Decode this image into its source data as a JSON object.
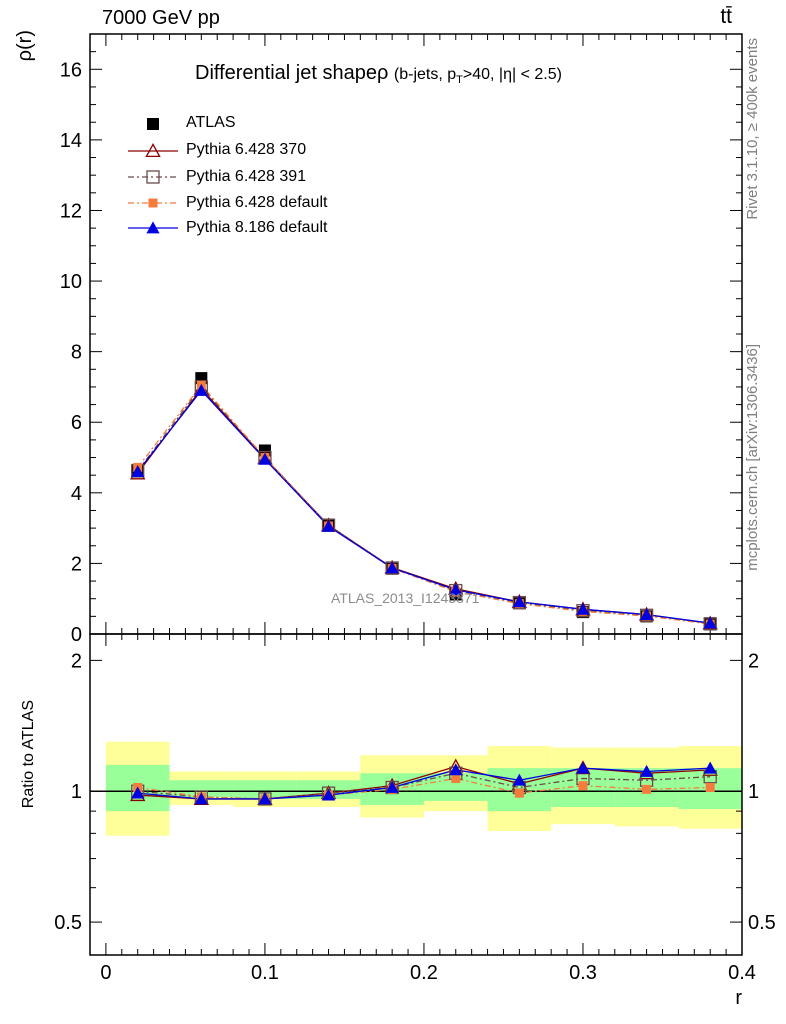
{
  "header": {
    "left": "7000 GeV pp",
    "right": "tt̄"
  },
  "side_labels": {
    "rivet": "Rivet 3.1.10, ≥ 400k events",
    "mcplots": "mcplots.cern.ch [arXiv:1306.3436]"
  },
  "watermark": "ATLAS_2013_I1243871",
  "colors": {
    "atlas": "#000000",
    "py370": "#8b0000",
    "py391": "#6b4a4a",
    "py6def": "#f47c3c",
    "py8def": "#0000e0",
    "band_yellow": "#ffff99",
    "band_green": "#99ff99"
  },
  "chart_data": [
    {
      "type": "line",
      "title": "Differential jet shapeρ",
      "subtitle": "(b-jets, p_T>40, |η| < 2.5)",
      "ylabel": "ρ(r)",
      "ylim": [
        0,
        17
      ],
      "yticks": [
        0,
        2,
        4,
        6,
        8,
        10,
        12,
        14,
        16
      ],
      "x": [
        0.02,
        0.06,
        0.1,
        0.14,
        0.18,
        0.22,
        0.26,
        0.3,
        0.34,
        0.38
      ],
      "legend_position": "top-left",
      "series": [
        {
          "name": "ATLAS",
          "key": "atlas",
          "marker": "square-filled",
          "values": [
            4.65,
            7.25,
            5.2,
            3.1,
            1.85,
            1.12,
            0.87,
            0.62,
            0.5,
            0.27
          ]
        },
        {
          "name": "Pythia 6.428 370",
          "key": "py370",
          "marker": "triangle-open",
          "values": [
            4.55,
            6.95,
            4.98,
            3.08,
            1.88,
            1.28,
            0.91,
            0.7,
            0.55,
            0.3
          ]
        },
        {
          "name": "Pythia 6.428 391",
          "key": "py391",
          "marker": "square-open",
          "values": [
            4.62,
            7.0,
            5.0,
            3.08,
            1.87,
            1.23,
            0.89,
            0.66,
            0.53,
            0.29
          ]
        },
        {
          "name": "Pythia 6.428 default",
          "key": "py6def",
          "marker": "square-filled-small",
          "values": [
            4.72,
            7.05,
            5.0,
            3.06,
            1.86,
            1.2,
            0.86,
            0.64,
            0.51,
            0.28
          ]
        },
        {
          "name": "Pythia 8.186 default",
          "key": "py8def",
          "marker": "triangle-filled",
          "values": [
            4.6,
            6.9,
            4.95,
            3.05,
            1.87,
            1.25,
            0.91,
            0.7,
            0.55,
            0.31
          ]
        }
      ]
    },
    {
      "type": "line",
      "ylabel": "Ratio to ATLAS",
      "xlabel": "r",
      "scale": "log",
      "ylim": [
        0.42,
        2.3
      ],
      "yticks": [
        0.5,
        1,
        2
      ],
      "xlim": [
        -0.01,
        0.4
      ],
      "xticks": [
        0,
        0.1,
        0.2,
        0.3,
        0.4
      ],
      "x": [
        0.02,
        0.06,
        0.1,
        0.14,
        0.18,
        0.22,
        0.26,
        0.3,
        0.34,
        0.38
      ],
      "bands": {
        "edges": [
          0,
          0.04,
          0.08,
          0.12,
          0.16,
          0.2,
          0.24,
          0.28,
          0.32,
          0.36,
          0.4
        ],
        "yellow_lo": [
          0.79,
          0.93,
          0.92,
          0.92,
          0.87,
          0.9,
          0.81,
          0.84,
          0.83,
          0.82
        ],
        "yellow_hi": [
          1.3,
          1.11,
          1.11,
          1.11,
          1.21,
          1.21,
          1.27,
          1.26,
          1.26,
          1.27
        ],
        "green_lo": [
          0.9,
          0.97,
          0.96,
          0.96,
          0.93,
          0.95,
          0.9,
          0.92,
          0.92,
          0.91
        ],
        "green_hi": [
          1.15,
          1.06,
          1.06,
          1.06,
          1.1,
          1.1,
          1.13,
          1.13,
          1.13,
          1.13
        ]
      },
      "series": [
        {
          "name": "Pythia 6.428 370",
          "key": "py370",
          "marker": "triangle-open",
          "values": [
            0.98,
            0.96,
            0.96,
            0.99,
            1.03,
            1.14,
            1.04,
            1.13,
            1.1,
            1.12
          ]
        },
        {
          "name": "Pythia 6.428 391",
          "key": "py391",
          "marker": "square-open",
          "values": [
            1.0,
            0.97,
            0.96,
            0.99,
            1.02,
            1.1,
            1.02,
            1.07,
            1.06,
            1.08
          ]
        },
        {
          "name": "Pythia 6.428 default",
          "key": "py6def",
          "marker": "square-filled-small",
          "values": [
            1.02,
            0.97,
            0.96,
            0.98,
            1.01,
            1.07,
            0.99,
            1.03,
            1.01,
            1.02
          ]
        },
        {
          "name": "Pythia 8.186 default",
          "key": "py8def",
          "marker": "triangle-filled",
          "values": [
            0.99,
            0.96,
            0.96,
            0.98,
            1.02,
            1.12,
            1.06,
            1.13,
            1.11,
            1.13
          ]
        }
      ]
    }
  ]
}
